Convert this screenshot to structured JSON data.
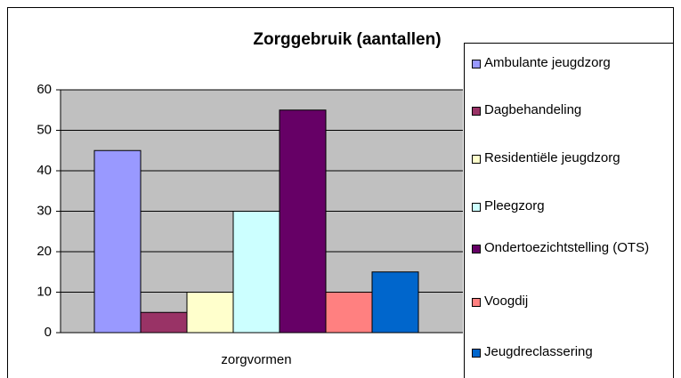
{
  "chart_data": {
    "type": "bar",
    "title": "Zorggebruik (aantallen)",
    "categories": [
      "zorgvormen"
    ],
    "series": [
      {
        "name": "Ambulante jeugdzorg",
        "color": "#9999ff",
        "values": [
          45
        ]
      },
      {
        "name": "Dagbehandeling",
        "color": "#993366",
        "values": [
          5
        ]
      },
      {
        "name": "Residentiële jeugdzorg",
        "color": "#ffffcc",
        "values": [
          10
        ]
      },
      {
        "name": "Pleegzorg",
        "color": "#ccffff",
        "values": [
          30
        ]
      },
      {
        "name": "Ondertoezichtstelling (OTS)",
        "color": "#660066",
        "values": [
          55
        ]
      },
      {
        "name": "Voogdij",
        "color": "#ff8080",
        "values": [
          10
        ]
      },
      {
        "name": "Jeugdreclassering",
        "color": "#0066cc",
        "values": [
          15
        ]
      }
    ],
    "ylim": [
      0,
      60
    ],
    "yticks": [
      0,
      10,
      20,
      30,
      40,
      50,
      60
    ],
    "grid": true,
    "legend": "right"
  }
}
